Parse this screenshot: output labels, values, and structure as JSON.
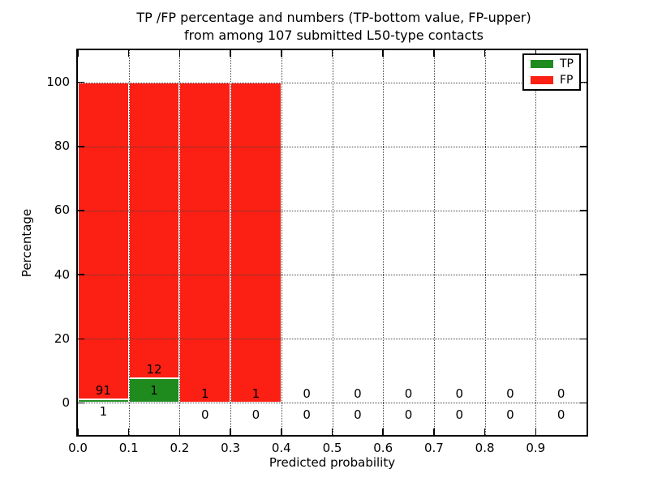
{
  "title": {
    "line1": "TP /FP percentage and numbers (TP-bottom value, FP-upper)",
    "line2": "from among 107 submitted L50-type contacts"
  },
  "chart_data": {
    "type": "bar",
    "stacked": true,
    "title": "TP /FP percentage and numbers (TP-bottom value, FP-upper) from among 107 submitted L50-type contacts",
    "xlabel": "Predicted probability",
    "ylabel": "Percentage",
    "xlim": [
      0.0,
      1.0
    ],
    "ylim": [
      -10,
      110
    ],
    "xticks": [
      "0.0",
      "0.1",
      "0.2",
      "0.3",
      "0.4",
      "0.5",
      "0.6",
      "0.7",
      "0.8",
      "0.9"
    ],
    "yticks": [
      0,
      20,
      40,
      60,
      80,
      100
    ],
    "grid": true,
    "grid_style": "dotted",
    "legend_position": "upper right",
    "total_contacts": 107,
    "bin_width": 0.1,
    "series": [
      {
        "name": "TP",
        "color": "#1f8b1f"
      },
      {
        "name": "FP",
        "color": "#fb1f14"
      }
    ],
    "bins": [
      {
        "range": [
          0.0,
          0.1
        ],
        "tp": 1,
        "fp": 91
      },
      {
        "range": [
          0.1,
          0.2
        ],
        "tp": 1,
        "fp": 12
      },
      {
        "range": [
          0.2,
          0.3
        ],
        "tp": 0,
        "fp": 1
      },
      {
        "range": [
          0.3,
          0.4
        ],
        "tp": 0,
        "fp": 1
      },
      {
        "range": [
          0.4,
          0.5
        ],
        "tp": 0,
        "fp": 0
      },
      {
        "range": [
          0.5,
          0.6
        ],
        "tp": 0,
        "fp": 0
      },
      {
        "range": [
          0.6,
          0.7
        ],
        "tp": 0,
        "fp": 0
      },
      {
        "range": [
          0.7,
          0.8
        ],
        "tp": 0,
        "fp": 0
      },
      {
        "range": [
          0.8,
          0.9
        ],
        "tp": 0,
        "fp": 0
      },
      {
        "range": [
          0.9,
          1.0
        ],
        "tp": 0,
        "fp": 0
      }
    ],
    "bar_value_note": "bar heights are TP/FP counts as percent of each bin total, stacked to 100%"
  },
  "colors": {
    "background": "#ffffff",
    "axis": "#000000",
    "grid": "#444444",
    "bar_edge": "#ffffff",
    "tp": "#1f8b1f",
    "fp": "#fb1f14"
  }
}
